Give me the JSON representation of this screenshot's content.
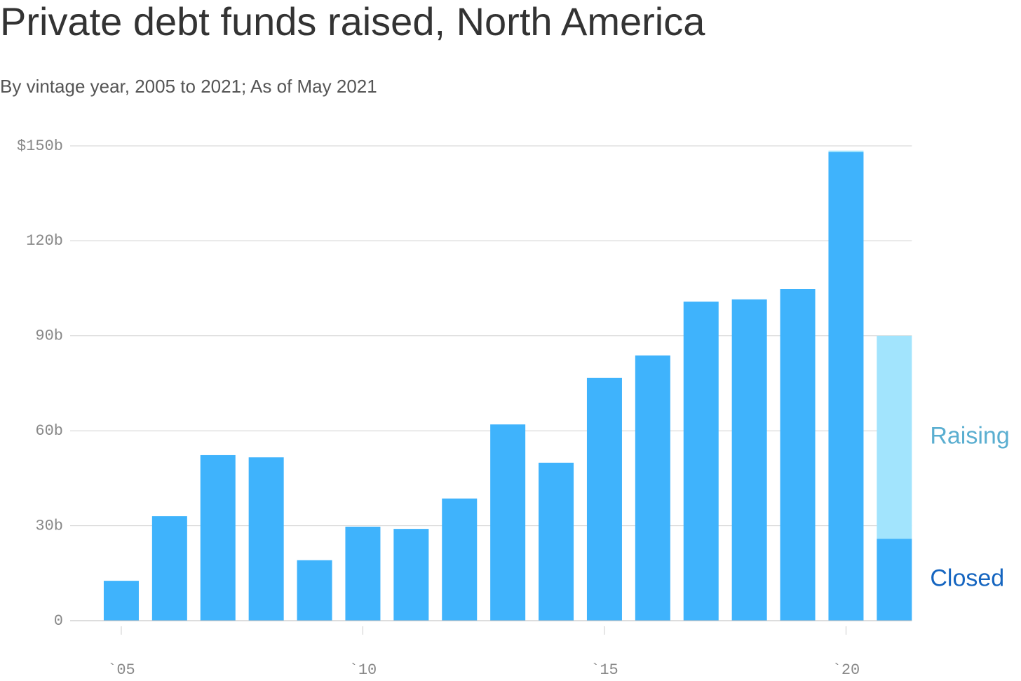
{
  "chart_data": {
    "type": "stacked_bar",
    "title": "Private debt funds raised, North America",
    "subtitle": "By vintage year, 2005 to 2021; As of May 2021",
    "categories": [
      "`05",
      null,
      null,
      null,
      null,
      "`10",
      null,
      null,
      null,
      null,
      "`15",
      null,
      null,
      null,
      null,
      "`20",
      null
    ],
    "series": [
      {
        "name": "Closed",
        "color": "#3fb3fc",
        "legend_color": "#1565c0",
        "values": [
          12.6,
          33.0,
          52.3,
          51.6,
          19.1,
          29.7,
          29.0,
          38.6,
          62.0,
          49.9,
          76.7,
          83.8,
          100.8,
          101.5,
          104.8,
          148.0,
          25.9
        ]
      },
      {
        "name": "Raising",
        "color": "#a2e4fd",
        "legend_color": "#5aaed0",
        "values": [
          0,
          0,
          0,
          0,
          0,
          0,
          0,
          0,
          0,
          0,
          0,
          0,
          0,
          0,
          0,
          0.5,
          64.1
        ]
      }
    ],
    "ylim": [
      0,
      150
    ],
    "yticks": [
      0,
      {
        "value": 30,
        "label": "30b"
      },
      {
        "value": 60,
        "label": "60b"
      },
      {
        "value": 90,
        "label": "90b"
      },
      {
        "value": 120,
        "label": "120b"
      },
      {
        "value": 150,
        "label": "$150b"
      }
    ],
    "grid": true,
    "legend": "right"
  }
}
